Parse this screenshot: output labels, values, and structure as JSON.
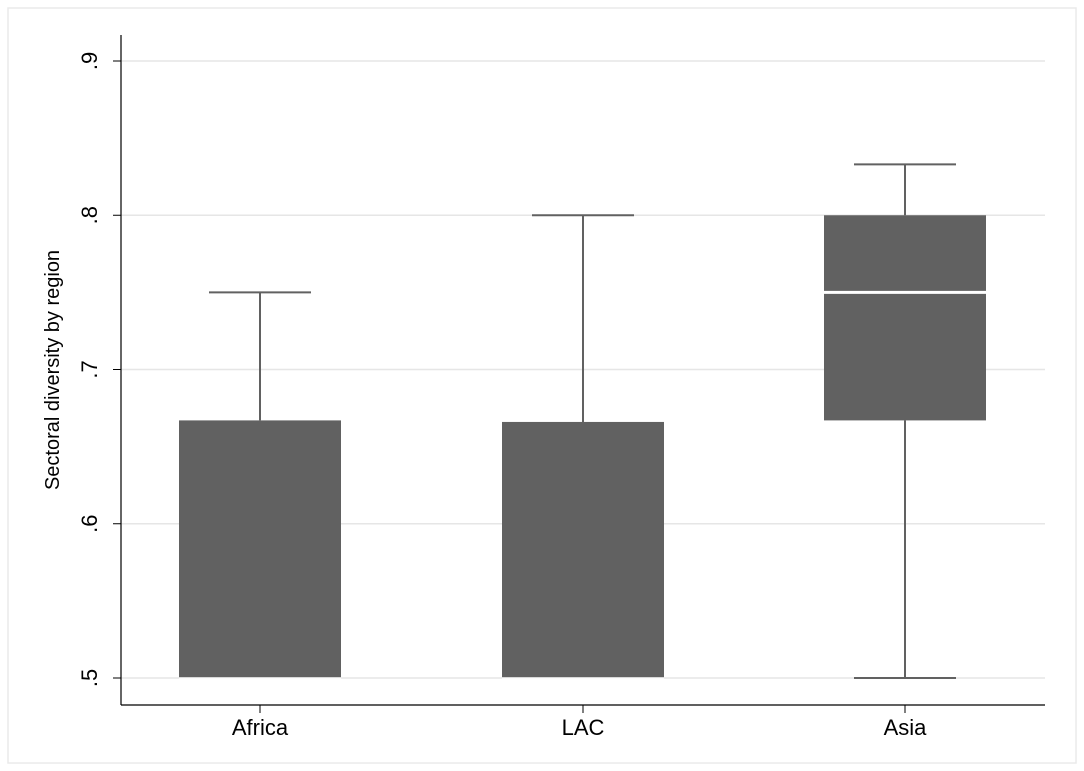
{
  "chart_data": {
    "type": "box",
    "ylabel": "Sectoral diversity by region",
    "xlabel": "",
    "title": "",
    "ylim": [
      0.5,
      0.9
    ],
    "yticks": [
      {
        "value": 0.5,
        "label": ".5"
      },
      {
        "value": 0.6,
        "label": ".6"
      },
      {
        "value": 0.7,
        "label": ".7"
      },
      {
        "value": 0.8,
        "label": ".8"
      },
      {
        "value": 0.9,
        "label": ".9"
      }
    ],
    "grid": true,
    "categories": [
      "Africa",
      "LAC",
      "Asia"
    ],
    "boxes": [
      {
        "category": "Africa",
        "min": 0.5,
        "q1": 0.5,
        "median": 0.5,
        "q3": 0.667,
        "max": 0.75
      },
      {
        "category": "LAC",
        "min": 0.5,
        "q1": 0.5,
        "median": 0.5,
        "q3": 0.666,
        "max": 0.8
      },
      {
        "category": "Asia",
        "min": 0.5,
        "q1": 0.667,
        "median": 0.75,
        "q3": 0.8,
        "max": 0.833
      }
    ],
    "colors": {
      "box_fill": "#616161",
      "whisker": "#616161",
      "median": "#ffffff",
      "grid": "#e6e6e6",
      "axis": "#000000",
      "frame": "#eaeaea"
    }
  }
}
